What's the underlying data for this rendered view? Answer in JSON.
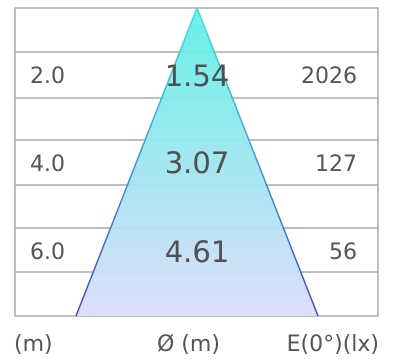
{
  "colors": {
    "grid": "#aaaaaa",
    "beam_top": "#5ff0e6",
    "beam_bottom": "#dcdcfa",
    "beam_edge_top": "#40e0d8",
    "beam_edge_bottom": "#3f4cc4",
    "text": "#555555"
  },
  "rows": [
    {
      "distance": "2.0",
      "diameter": "1.54",
      "illuminance": "2026"
    },
    {
      "distance": "4.0",
      "diameter": "3.07",
      "illuminance": "127"
    },
    {
      "distance": "6.0",
      "diameter": "4.61",
      "illuminance": "56"
    }
  ],
  "footer": {
    "distance_label": "(m)",
    "diameter_label": "Ø (m)",
    "illuminance_label": "E(0°)(lx)"
  }
}
